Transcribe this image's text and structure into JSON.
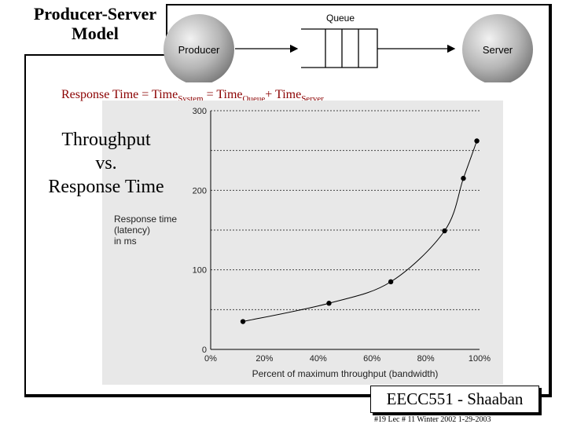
{
  "slide": {
    "title_lines": [
      "Producer-Server",
      "Model"
    ],
    "formula": {
      "prefix": "Response Time  =  Time",
      "sub_system": "System",
      "eq2": " = Time",
      "sub_queue": "Queue",
      "plus": "+  Time",
      "sub_server": "Server"
    },
    "side_title_lines": [
      "Throughput",
      "vs.",
      "Response Time"
    ],
    "footer": {
      "course": "EECC551 - Shaaban",
      "line": "#19   Lec # 11   Winter 2002  1-29-2003"
    }
  },
  "diagram": {
    "producer_label": "Producer",
    "queue_label": "Queue",
    "server_label": "Server"
  },
  "chart_data": {
    "type": "line",
    "x": [
      12,
      44,
      67,
      87,
      94,
      99
    ],
    "values": [
      35,
      58,
      85,
      149,
      215,
      262
    ],
    "x_ticks": [
      "0%",
      "20%",
      "40%",
      "60%",
      "80%",
      "100%"
    ],
    "y_ticks": [
      "0",
      "100",
      "200",
      "300"
    ],
    "xlabel": "Percent of maximum throughput (bandwidth)",
    "ylabel_lines": [
      "Response time",
      "(latency)",
      "in ms"
    ],
    "xlim": [
      0,
      100
    ],
    "ylim": [
      0,
      300
    ],
    "grid": "horizontal dotted",
    "colors": {
      "panel": "#e8e8e8",
      "line": "#000000",
      "title": "#8b0000"
    }
  }
}
